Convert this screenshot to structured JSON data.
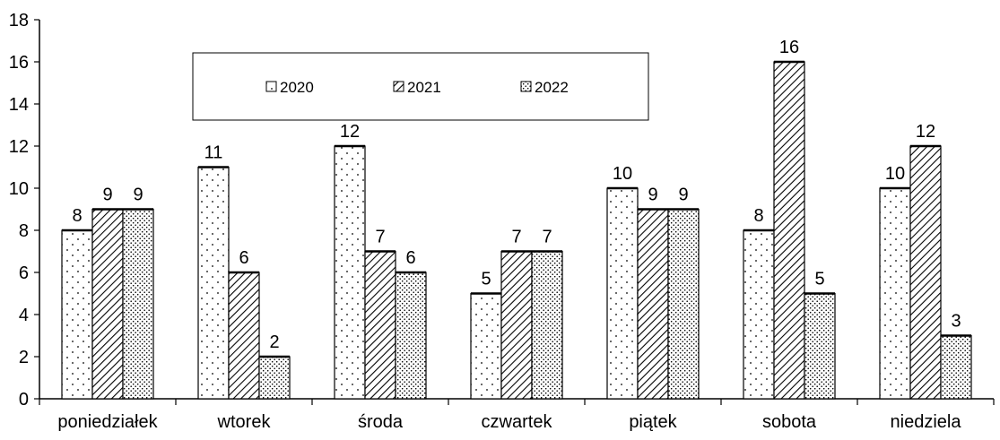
{
  "chart_data": {
    "type": "bar",
    "categories": [
      "poniedziałek",
      "wtorek",
      "środa",
      "czwartek",
      "piątek",
      "sobota",
      "niedziela"
    ],
    "series": [
      {
        "name": "2020",
        "values": [
          8,
          11,
          12,
          5,
          10,
          8,
          10
        ],
        "pattern": "dots-sparse"
      },
      {
        "name": "2021",
        "values": [
          9,
          6,
          7,
          7,
          9,
          16,
          12
        ],
        "pattern": "diagonal-hatch"
      },
      {
        "name": "2022",
        "values": [
          9,
          2,
          6,
          7,
          9,
          5,
          3
        ],
        "pattern": "dots-dense"
      }
    ],
    "ylim": [
      0,
      18
    ],
    "yticks": [
      0,
      2,
      4,
      6,
      8,
      10,
      12,
      14,
      16,
      18
    ],
    "title": "",
    "xlabel": "",
    "ylabel": "",
    "grid": false,
    "legend_position": "top-center",
    "colors": {
      "bar_fill": "#ffffff",
      "stroke": "#000000",
      "pattern": "#000000"
    }
  }
}
